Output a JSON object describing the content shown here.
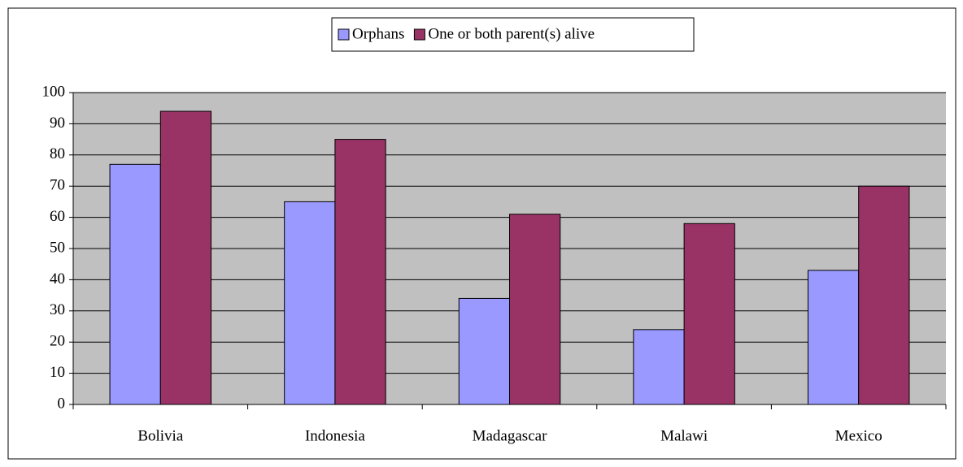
{
  "chart_data": {
    "type": "bar",
    "categories": [
      "Bolivia",
      "Indonesia",
      "Madagascar",
      "Malawi",
      "Mexico"
    ],
    "series": [
      {
        "name": "Orphans",
        "color": "#9999ff",
        "values": [
          77,
          65,
          34,
          24,
          43
        ]
      },
      {
        "name": "One or both parent(s) alive",
        "color": "#993366",
        "values": [
          94,
          85,
          61,
          58,
          70
        ]
      }
    ],
    "ylim": [
      0,
      100
    ],
    "yticks": [
      0,
      10,
      20,
      30,
      40,
      50,
      60,
      70,
      80,
      90,
      100
    ],
    "grid": true,
    "legend": "top"
  }
}
